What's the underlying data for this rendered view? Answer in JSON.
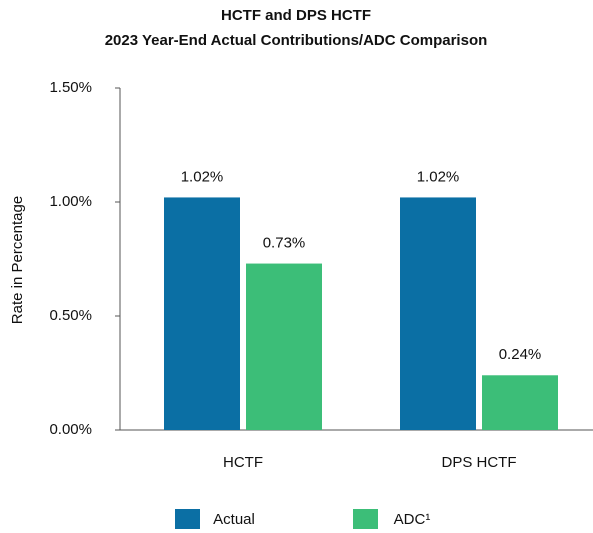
{
  "chart_data": {
    "type": "grouped-bar",
    "title": [
      "HCTF and DPS HCTF",
      "2023 Year-End Actual Contributions/ADC Comparison"
    ],
    "y_label": "Rate in Percentage",
    "categories": [
      "HCTF",
      "DPS HCTF"
    ],
    "series": [
      {
        "name": "Actual",
        "color": "#0b6fa4",
        "values": [
          1.02,
          1.02
        ],
        "value_labels": [
          "1.02%",
          "1.02%"
        ]
      },
      {
        "name": "ADC¹",
        "color": "#3cbe78",
        "values": [
          0.73,
          0.24
        ],
        "value_labels": [
          "0.73%",
          "0.24%"
        ]
      }
    ],
    "ylim": [
      0,
      1.5
    ],
    "yticks": [
      {
        "value": 0,
        "label": "0.00%"
      },
      {
        "value": 0.5,
        "label": "0.50%"
      },
      {
        "value": 1,
        "label": "1.00%"
      },
      {
        "value": 1.5,
        "label": "1.50%"
      }
    ],
    "legend": "bottom"
  }
}
